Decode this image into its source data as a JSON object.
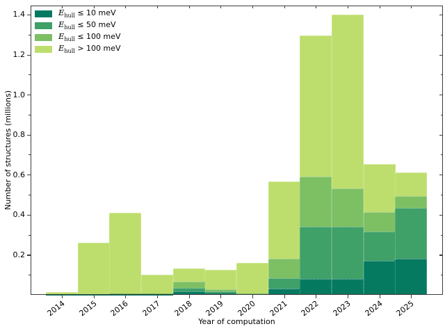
{
  "figure": {
    "xlabel": "Year of computation",
    "ylabel": "Number of structures (millions)"
  },
  "legend": {
    "position": "upper left",
    "items": [
      {
        "e": "E",
        "sub": "hull",
        "rest": " ≤ 10 meV",
        "label": "E_hull ≤ 10 meV",
        "color": "#057a60"
      },
      {
        "e": "E",
        "sub": "hull",
        "rest": " ≤ 50 meV",
        "label": "E_hull ≤ 50 meV",
        "color": "#3fa068"
      },
      {
        "e": "E",
        "sub": "hull",
        "rest": " ≤ 100 meV",
        "label": "E_hull ≤ 100 meV",
        "color": "#7dbf63"
      },
      {
        "e": "E",
        "sub": "hull",
        "rest": " > 100 meV",
        "label": "E_hull > 100 meV",
        "color": "#bdde6d"
      }
    ]
  },
  "chart_data": {
    "type": "bar",
    "subtype": "stacked-step-histogram",
    "title": "",
    "xlabel": "Year of computation",
    "ylabel": "Number of structures (millions)",
    "categories": [
      "2014",
      "2015",
      "2016",
      "2017",
      "2018",
      "2019",
      "2020",
      "2021",
      "2022",
      "2023",
      "2024",
      "2025"
    ],
    "series": [
      {
        "name": "E_hull ≤ 10 meV",
        "color": "#057a60",
        "values": [
          0.001,
          0.001,
          0.001,
          0.001,
          0.018,
          0.008,
          0.002,
          0.03,
          0.08,
          0.08,
          0.17,
          0.179
        ]
      },
      {
        "name": "E_hull ≤ 50 meV",
        "color": "#3fa068",
        "values": [
          0.001,
          0.002,
          0.002,
          0.002,
          0.017,
          0.01,
          0.003,
          0.055,
          0.261,
          0.259,
          0.146,
          0.255
        ]
      },
      {
        "name": "E_hull ≤ 100 meV",
        "color": "#7dbf63",
        "values": [
          0.002,
          0.002,
          0.003,
          0.003,
          0.03,
          0.01,
          0.003,
          0.095,
          0.25,
          0.191,
          0.098,
          0.058
        ]
      },
      {
        "name": "E_hull > 100 meV",
        "color": "#bdde6d",
        "values": [
          0.011,
          0.255,
          0.404,
          0.094,
          0.067,
          0.098,
          0.153,
          0.387,
          0.705,
          0.871,
          0.238,
          0.119
        ]
      }
    ],
    "totals": [
      0.015,
      0.26,
      0.41,
      0.1,
      0.132,
      0.126,
      0.161,
      0.567,
      1.296,
      1.401,
      0.652,
      0.611
    ],
    "ylim": [
      0,
      1.445
    ],
    "yticks": [
      0.2,
      0.4,
      0.6,
      0.8,
      1.0,
      1.2,
      1.4
    ],
    "ytick_labels": [
      "0.2",
      "0.4",
      "0.6",
      "0.8",
      "1.0",
      "1.2",
      "1.4"
    ],
    "yticks_minor": [
      0.1,
      0.3,
      0.5,
      0.7,
      0.9,
      1.1,
      1.3
    ],
    "grid": false,
    "legend_position": "upper left"
  }
}
